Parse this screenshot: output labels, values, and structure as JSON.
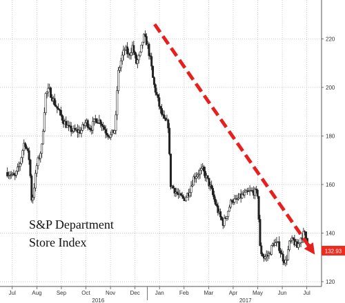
{
  "chart_data": {
    "type": "candlestick",
    "title_lines": [
      "S&P Department",
      "Store Index"
    ],
    "y_ticks": [
      120,
      140,
      160,
      180,
      200,
      220
    ],
    "ylim": [
      118,
      236
    ],
    "months": [
      "Jul",
      "Aug",
      "Sep",
      "Oct",
      "Nov",
      "Dec",
      "Jan",
      "Feb",
      "Mar",
      "Apr",
      "May",
      "Jun",
      "Jul"
    ],
    "years": [
      {
        "label": "2016",
        "anchor_month": 3.5
      },
      {
        "label": "2017",
        "anchor_month": 9.5
      }
    ],
    "xlim_months": [
      -0.5,
      12.6
    ],
    "grid": true,
    "last_value": "132.93",
    "trend_arrow": {
      "from": {
        "month": 5.8,
        "value": 226
      },
      "to": {
        "month": 12.2,
        "value": 133
      }
    },
    "colors": {
      "candle": "#222222",
      "arrow": "#e8201d",
      "last_box": "#ef2b1f",
      "grid": "#bfbfbf",
      "axis": "#555555"
    },
    "path_points": [
      [
        -0.2,
        165
      ],
      [
        0.1,
        163
      ],
      [
        0.3,
        168
      ],
      [
        0.5,
        178
      ],
      [
        0.7,
        170
      ],
      [
        0.8,
        152
      ],
      [
        1.0,
        168
      ],
      [
        1.2,
        175
      ],
      [
        1.35,
        197
      ],
      [
        1.5,
        199
      ],
      [
        1.7,
        194
      ],
      [
        1.9,
        190
      ],
      [
        2.1,
        186
      ],
      [
        2.3,
        183
      ],
      [
        2.5,
        182
      ],
      [
        2.8,
        182
      ],
      [
        3.0,
        186
      ],
      [
        3.2,
        183
      ],
      [
        3.4,
        187
      ],
      [
        3.6,
        186
      ],
      [
        3.8,
        182
      ],
      [
        4.0,
        180
      ],
      [
        4.2,
        183
      ],
      [
        4.3,
        205
      ],
      [
        4.45,
        212
      ],
      [
        4.6,
        216
      ],
      [
        4.75,
        213
      ],
      [
        4.9,
        217
      ],
      [
        5.05,
        210
      ],
      [
        5.2,
        213
      ],
      [
        5.35,
        221
      ],
      [
        5.5,
        218
      ],
      [
        5.65,
        210
      ],
      [
        5.75,
        202
      ],
      [
        5.9,
        196
      ],
      [
        6.05,
        190
      ],
      [
        6.2,
        186
      ],
      [
        6.35,
        185
      ],
      [
        6.45,
        160
      ],
      [
        6.6,
        158
      ],
      [
        6.8,
        155
      ],
      [
        7.0,
        154
      ],
      [
        7.2,
        157
      ],
      [
        7.4,
        163
      ],
      [
        7.6,
        165
      ],
      [
        7.75,
        166
      ],
      [
        7.95,
        162
      ],
      [
        8.1,
        158
      ],
      [
        8.25,
        153
      ],
      [
        8.45,
        147
      ],
      [
        8.6,
        144
      ],
      [
        8.75,
        148
      ],
      [
        8.95,
        154
      ],
      [
        9.1,
        153
      ],
      [
        9.3,
        155
      ],
      [
        9.5,
        156
      ],
      [
        9.7,
        157
      ],
      [
        9.85,
        157
      ],
      [
        10.0,
        156
      ],
      [
        10.1,
        133
      ],
      [
        10.25,
        130
      ],
      [
        10.45,
        131
      ],
      [
        10.65,
        136
      ],
      [
        10.85,
        135
      ],
      [
        11.0,
        130
      ],
      [
        11.15,
        128
      ],
      [
        11.3,
        136
      ],
      [
        11.45,
        137
      ],
      [
        11.6,
        134
      ],
      [
        11.75,
        138
      ],
      [
        11.9,
        140
      ],
      [
        12.0,
        137
      ],
      [
        12.15,
        134
      ]
    ]
  }
}
